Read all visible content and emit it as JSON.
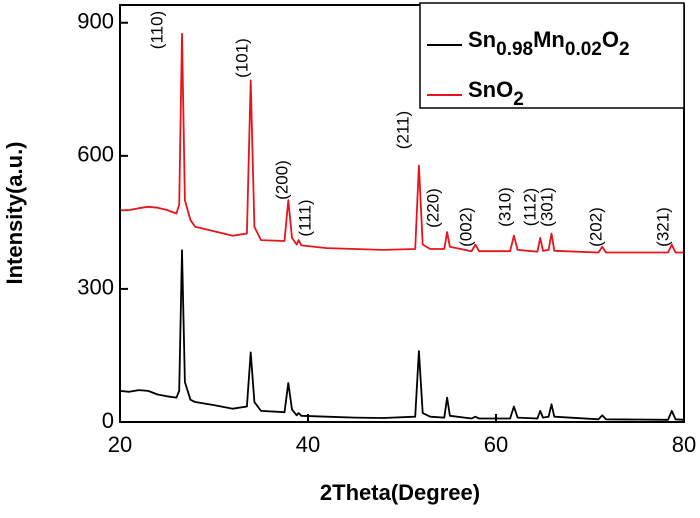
{
  "chart_data": {
    "type": "line",
    "xlabel": "2Theta(Degree)",
    "ylabel": "Intensity(a.u.)",
    "xlim": [
      20,
      80
    ],
    "ylim": [
      0,
      940
    ],
    "xticks": [
      20,
      40,
      60,
      80
    ],
    "yticks": [
      0,
      300,
      600,
      900
    ],
    "legend": "upper right",
    "x": [
      20,
      21,
      22,
      23,
      24,
      25,
      26,
      26.3,
      26.6,
      26.9,
      27.5,
      28,
      30,
      32,
      33.5,
      33.9,
      34.3,
      35,
      37.5,
      37.9,
      38.3,
      38.8,
      39.0,
      39.3,
      42,
      45,
      48,
      51.4,
      51.8,
      52.2,
      53,
      54.5,
      54.8,
      55.1,
      57.4,
      57.8,
      58.2,
      61.5,
      61.9,
      62.3,
      64.4,
      64.7,
      65.0,
      65.6,
      65.9,
      66.2,
      70.9,
      71.3,
      71.7,
      78.3,
      78.7,
      79.1,
      80
    ],
    "series": [
      {
        "name": "Sn0.98Mn0.02O2",
        "color": "#000000",
        "values": [
          70,
          68,
          72,
          70,
          62,
          58,
          55,
          70,
          387,
          90,
          50,
          45,
          38,
          30,
          35,
          157,
          45,
          25,
          22,
          88,
          28,
          15,
          20,
          14,
          12,
          10,
          9,
          12,
          160,
          20,
          12,
          10,
          55,
          14,
          8,
          12,
          8,
          8,
          35,
          10,
          8,
          25,
          10,
          12,
          40,
          12,
          6,
          15,
          6,
          5,
          25,
          6,
          5
        ]
      },
      {
        "name": "SnO2",
        "color": "#e8141c",
        "values": [
          477,
          478,
          482,
          485,
          483,
          478,
          470,
          490,
          875,
          500,
          455,
          440,
          430,
          420,
          425,
          770,
          440,
          410,
          408,
          500,
          415,
          400,
          410,
          398,
          392,
          390,
          388,
          390,
          578,
          400,
          390,
          390,
          428,
          395,
          385,
          400,
          385,
          385,
          420,
          388,
          384,
          415,
          386,
          388,
          425,
          386,
          382,
          395,
          382,
          382,
          400,
          382,
          382
        ]
      }
    ],
    "annotations": [
      "(110)",
      "(101)",
      "(200)",
      "(111)",
      "(211)",
      "(220)",
      "(002)",
      "(310)",
      "(112)",
      "(301)",
      "(202)",
      "(321)"
    ]
  }
}
